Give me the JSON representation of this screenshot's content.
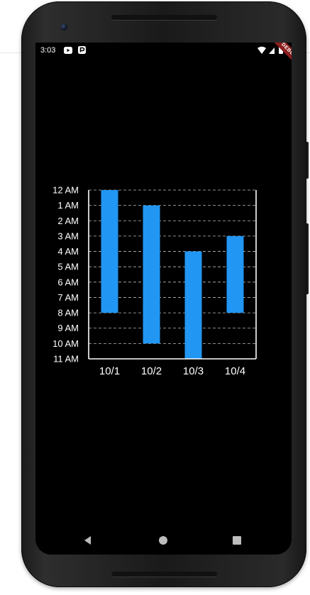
{
  "status_bar": {
    "time": "3:03",
    "icons": [
      "youtube-icon",
      "app-notification-icon",
      "wifi-icon",
      "signal-icon",
      "battery-icon"
    ]
  },
  "debug_banner": {
    "label": "DEBUG"
  },
  "navigation": {
    "icons": [
      "back-icon",
      "home-icon",
      "recent-apps-icon"
    ]
  },
  "colors": {
    "bar": "#2196F3",
    "background": "#000000",
    "axis": "#ffffff",
    "grid": "#bdbdbd",
    "debug_ribbon": "#8b1d1d"
  },
  "chart_data": {
    "type": "bar",
    "title": "",
    "xlabel": "",
    "ylabel": "",
    "categories": [
      "10/1",
      "10/2",
      "10/3",
      "10/4"
    ],
    "y_tick_labels": [
      "12 AM",
      "1 AM",
      "2 AM",
      "3 AM",
      "4 AM",
      "5 AM",
      "6 AM",
      "7 AM",
      "8 AM",
      "9 AM",
      "10 AM",
      "11 AM"
    ],
    "y_axis_inverted": true,
    "ylim": [
      0,
      11
    ],
    "ranges": [
      {
        "category": "10/1",
        "start": 0,
        "end": 8
      },
      {
        "category": "10/2",
        "start": 1,
        "end": 10
      },
      {
        "category": "10/3",
        "start": 4,
        "end": 11
      },
      {
        "category": "10/4",
        "start": 3,
        "end": 8
      }
    ],
    "grid": "horizontal dashed",
    "legend": "none"
  }
}
